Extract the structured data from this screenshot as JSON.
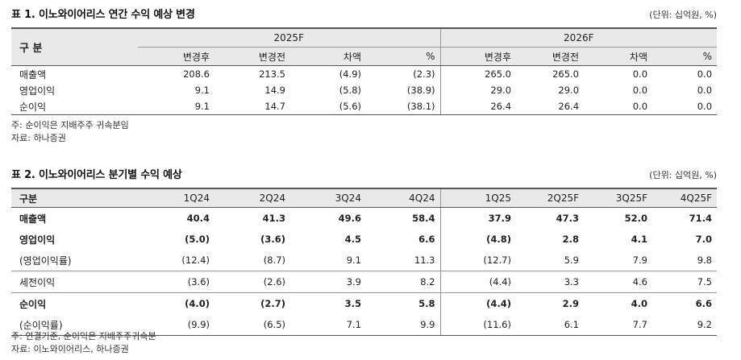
{
  "table1": {
    "title": "표 1. 이노와이어리스 연간 수익 예상 변경",
    "unit": "(단위: 십억원, %)",
    "row_header": "구 분",
    "groups": [
      "2025F",
      "2026F"
    ],
    "columns": [
      "변경후",
      "변경전",
      "차액",
      "%",
      "변경후",
      "변경전",
      "차액",
      "%"
    ],
    "rows": [
      {
        "label": "매출액",
        "values": [
          "208.6",
          "213.5",
          "(4.9)",
          "(2.3)",
          "265.0",
          "265.0",
          "0.0",
          "0.0"
        ]
      },
      {
        "label": "영업이익",
        "values": [
          "9.1",
          "14.9",
          "(5.8)",
          "(38.9)",
          "29.0",
          "29.0",
          "0.0",
          "0.0"
        ]
      },
      {
        "label": "순이익",
        "values": [
          "9.1",
          "14.7",
          "(5.6)",
          "(38.1)",
          "26.4",
          "26.4",
          "0.0",
          "0.0"
        ]
      }
    ],
    "notes": [
      "주: 순이익은 지배주주 귀속분임",
      "자료: 하나증권"
    ]
  },
  "table2": {
    "title": "표 2. 이노와이어리스 분기별 수익 예상",
    "unit": "(단위: 십억원, %)",
    "row_header": "구분",
    "columns": [
      "1Q24",
      "2Q24",
      "3Q24",
      "4Q24",
      "1Q25",
      "2Q25F",
      "3Q25F",
      "4Q25F"
    ],
    "rows": [
      {
        "label": "매출액",
        "values": [
          "40.4",
          "41.3",
          "49.6",
          "58.4",
          "37.9",
          "47.3",
          "52.0",
          "71.4"
        ]
      },
      {
        "label": "영업이익",
        "values": [
          "(5.0)",
          "(3.6)",
          "4.5",
          "6.6",
          "(4.8)",
          "2.8",
          "4.1",
          "7.0"
        ]
      },
      {
        "label": "(영업이익률)",
        "values": [
          "(12.4)",
          "(8.7)",
          "9.1",
          "11.3",
          "(12.7)",
          "5.9",
          "7.9",
          "9.8"
        ]
      },
      {
        "label": "세전이익",
        "values": [
          "(3.6)",
          "(2.6)",
          "3.9",
          "8.2",
          "(4.4)",
          "3.3",
          "4.6",
          "7.5"
        ]
      },
      {
        "label": "순이익",
        "values": [
          "(4.0)",
          "(2.7)",
          "3.5",
          "5.8",
          "(4.4)",
          "2.9",
          "4.0",
          "6.6"
        ]
      },
      {
        "label": "(순이익률)",
        "values": [
          "(9.9)",
          "(6.5)",
          "7.1",
          "9.9",
          "(11.6)",
          "6.1",
          "7.7",
          "9.2"
        ]
      }
    ],
    "notes": [
      "주: 연결기준, 순이익은 지배주주귀속분",
      "자료: 이노와이어리스, 하나증권"
    ]
  }
}
